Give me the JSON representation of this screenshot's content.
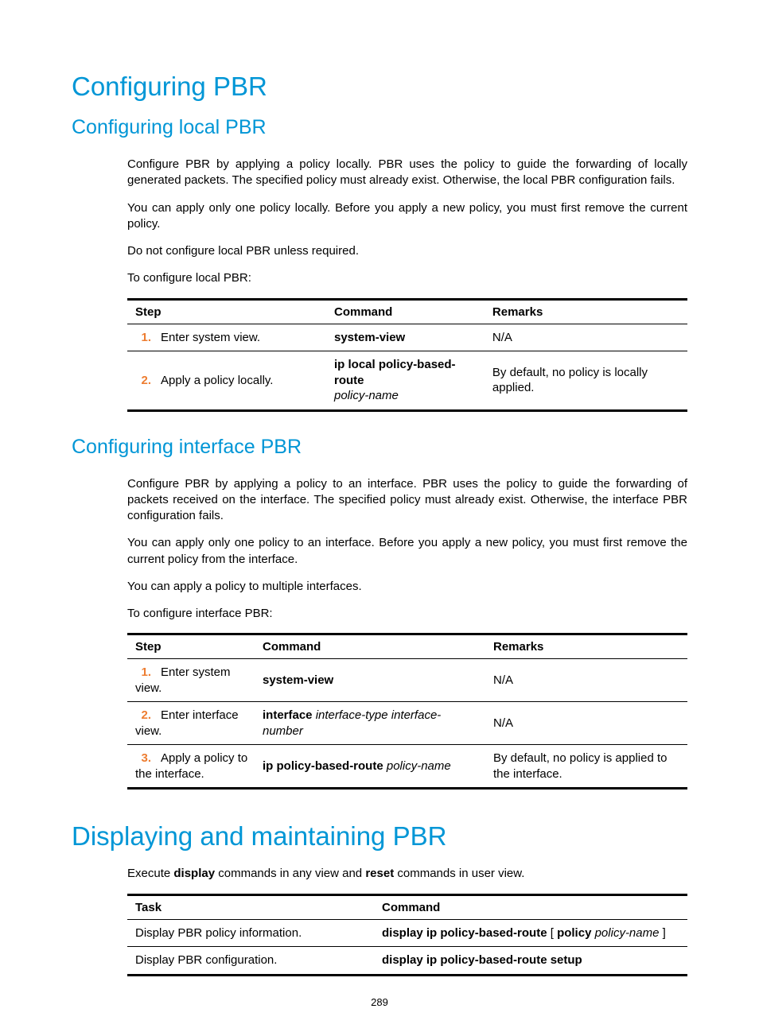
{
  "page_number": "289",
  "colors": {
    "heading": "#0096d6",
    "step_num": "#ed7d31",
    "text": "#000000",
    "border": "#000000",
    "background": "#ffffff"
  },
  "h1_a": "Configuring PBR",
  "h2_a": "Configuring local PBR",
  "para_a1": "Configure PBR by applying a policy locally. PBR uses the policy to guide the forwarding of locally generated packets. The specified policy must already exist. Otherwise, the local PBR configuration fails.",
  "para_a2": "You can apply only one policy locally. Before you apply a new policy, you must first remove the current policy.",
  "para_a3": "Do not configure local PBR unless required.",
  "para_a4": "To configure local PBR:",
  "table1": {
    "headers": {
      "c1": "Step",
      "c2": "Command",
      "c3": "Remarks"
    },
    "rows": [
      {
        "num": "1.",
        "step": "Enter system view.",
        "cmd_bold": "system-view",
        "cmd_italic": "",
        "remarks": "N/A"
      },
      {
        "num": "2.",
        "step": "Apply a policy locally.",
        "cmd_bold": "ip local policy-based-route",
        "cmd_italic": "policy-name",
        "remarks": "By default, no policy is locally applied."
      }
    ]
  },
  "h2_b": "Configuring interface PBR",
  "para_b1": "Configure PBR by applying a policy to an interface. PBR uses the policy to guide the forwarding of packets received on the interface. The specified policy must already exist. Otherwise, the interface PBR configuration fails.",
  "para_b2": "You can apply only one policy to an interface. Before you apply a new policy, you must first remove the current policy from the interface.",
  "para_b3": "You can apply a policy to multiple interfaces.",
  "para_b4": "To configure interface PBR:",
  "table2": {
    "headers": {
      "c1": "Step",
      "c2": "Command",
      "c3": "Remarks"
    },
    "rows": [
      {
        "num": "1.",
        "step": "Enter system view.",
        "cmd_bold": "system-view",
        "cmd_italic": "",
        "remarks": "N/A"
      },
      {
        "num": "2.",
        "step": "Enter interface view.",
        "cmd_bold": "interface",
        "cmd_italic": "interface-type interface-number",
        "remarks": "N/A"
      },
      {
        "num": "3.",
        "step": "Apply a policy to the interface.",
        "cmd_bold": "ip policy-based-route",
        "cmd_italic": "policy-name",
        "remarks": "By default, no policy is applied to the interface."
      }
    ]
  },
  "h1_b": "Displaying and maintaining PBR",
  "para_c1_pre": "Execute ",
  "para_c1_b1": "display",
  "para_c1_mid": " commands in any view and ",
  "para_c1_b2": "reset",
  "para_c1_post": " commands in user view.",
  "table3": {
    "headers": {
      "c1": "Task",
      "c2": "Command"
    },
    "rows": [
      {
        "task": "Display PBR policy information.",
        "cmd_b1": "display ip policy-based-route",
        "cmd_plain": " [ ",
        "cmd_b2": "policy",
        "cmd_italic": " policy-name ",
        "cmd_close": "]"
      },
      {
        "task": "Display PBR configuration.",
        "cmd_b1": "display ip policy-based-route setup",
        "cmd_plain": "",
        "cmd_b2": "",
        "cmd_italic": "",
        "cmd_close": ""
      }
    ]
  }
}
